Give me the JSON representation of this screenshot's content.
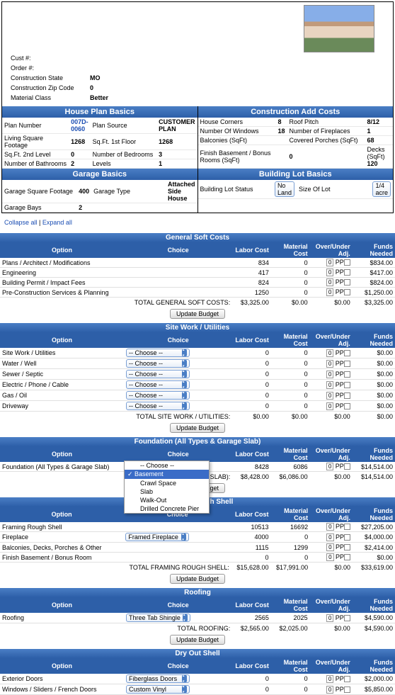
{
  "topInfo": {
    "custNum": {
      "label": "Cust #:",
      "value": ""
    },
    "orderNum": {
      "label": "Order #:",
      "value": ""
    },
    "state": {
      "label": "Construction State",
      "value": "MO"
    },
    "zip": {
      "label": "Construction Zip Code",
      "value": "0"
    },
    "material": {
      "label": "Material Class",
      "value": "Better"
    }
  },
  "housePlan": {
    "title": "House Plan Basics",
    "planNum": {
      "label": "Plan Number",
      "value": "007D-0060"
    },
    "planSrc": {
      "label": "Plan Source",
      "value": "CUSTOMER PLAN"
    },
    "livSqFt": {
      "label": "Living Square Footage",
      "value": "1268"
    },
    "sqFt1": {
      "label": "Sq.Ft. 1st Floor",
      "value": "1268"
    },
    "sqFt2": {
      "label": "Sq.Ft. 2nd Level",
      "value": "0"
    },
    "bedrooms": {
      "label": "Number of Bedrooms",
      "value": "3"
    },
    "bathrooms": {
      "label": "Number of Bathrooms",
      "value": "2"
    },
    "levels": {
      "label": "Levels",
      "value": "1"
    }
  },
  "addCosts": {
    "title": "Construction Add Costs",
    "corners": {
      "label": "House Corners",
      "value": "8"
    },
    "roofPitch": {
      "label": "Roof Pitch",
      "value": "8/12"
    },
    "windows": {
      "label": "Number Of Windows",
      "value": "18"
    },
    "fireplaces": {
      "label": "Number of Fireplaces",
      "value": "1"
    },
    "balconies": {
      "label": "Balconies (SqFt)",
      "value": ""
    },
    "porches": {
      "label": "Covered Porches (SqFt)",
      "value": "68"
    },
    "finishBsmt": {
      "label": "Finish Basement / Bonus Rooms (SqFt)",
      "value": "0"
    },
    "decks": {
      "label": "Decks (SqFt)",
      "value": "120"
    }
  },
  "garage": {
    "title": "Garage Basics",
    "sqFt": {
      "label": "Garage Square Footage",
      "value": "400"
    },
    "type": {
      "label": "Garage Type",
      "value": "Attached Side House"
    },
    "bays": {
      "label": "Garage Bays",
      "value": "2"
    }
  },
  "lot": {
    "title": "Building Lot Basics",
    "status": {
      "label": "Building Lot Status",
      "value": "No Land"
    },
    "size": {
      "label": "Size Of Lot",
      "value": "1/4 acre"
    }
  },
  "links": {
    "collapse": "Collapse all",
    "expand": "Expand all"
  },
  "hdrs": {
    "option": "Option",
    "choice": "Choice",
    "labor": "Labor Cost",
    "material": "Material Cost",
    "adj": "Over/Under Adj.",
    "funds": "Funds Needed"
  },
  "updateBtn": "Update Budget",
  "sections": {
    "soft": {
      "title": "General Soft Costs",
      "rows": [
        {
          "opt": "Plans / Architect / Modifications",
          "labor": "834",
          "mat": "0",
          "adj": "0",
          "funds": "$834.00"
        },
        {
          "opt": "Engineering",
          "labor": "417",
          "mat": "0",
          "adj": "0",
          "funds": "$417.00"
        },
        {
          "opt": "Building Permit / Impact Fees",
          "labor": "824",
          "mat": "0",
          "adj": "0",
          "funds": "$824.00"
        },
        {
          "opt": "Pre-Construction Services & Planning",
          "labor": "1250",
          "mat": "0",
          "adj": "0",
          "funds": "$1,250.00"
        }
      ],
      "totalLbl": "TOTAL GENERAL SOFT COSTS:",
      "totLabor": "$3,325.00",
      "totMat": "$0.00",
      "totAdj": "$0.00",
      "totFunds": "$3,325.00"
    },
    "site": {
      "title": "Site Work / Utilities",
      "rows": [
        {
          "opt": "Site Work / Utilities",
          "cho": "-- Choose --",
          "labor": "0",
          "mat": "0",
          "adj": "0",
          "funds": "$0.00"
        },
        {
          "opt": "Water / Well",
          "cho": "-- Choose --",
          "labor": "0",
          "mat": "0",
          "adj": "0",
          "funds": "$0.00"
        },
        {
          "opt": "Sewer / Septic",
          "cho": "-- Choose --",
          "labor": "0",
          "mat": "0",
          "adj": "0",
          "funds": "$0.00"
        },
        {
          "opt": "Electric / Phone / Cable",
          "cho": "-- Choose --",
          "labor": "0",
          "mat": "0",
          "adj": "0",
          "funds": "$0.00"
        },
        {
          "opt": "Gas / Oil",
          "cho": "-- Choose --",
          "labor": "0",
          "mat": "0",
          "adj": "0",
          "funds": "$0.00"
        },
        {
          "opt": "Driveway",
          "cho": "-- Choose --",
          "labor": "0",
          "mat": "0",
          "adj": "0",
          "funds": "$0.00"
        }
      ],
      "totalLbl": "TOTAL SITE WORK / UTILITIES:",
      "totLabor": "$0.00",
      "totMat": "$0.00",
      "totAdj": "$0.00",
      "totFunds": "$0.00"
    },
    "foundation": {
      "title": "Foundation (All Types & Garage Slab)",
      "rows": [
        {
          "opt": "Foundation (All Types & Garage Slab)",
          "labor": "8428",
          "mat": "6086",
          "adj": "0",
          "funds": "$14,514.00"
        }
      ],
      "totalLbl": "S & GARAGE SLAB):",
      "totLabor": "$8,428.00",
      "totMat": "$6,086.00",
      "totAdj": "$0.00",
      "totFunds": "$14,514.00",
      "dropdown": {
        "items": [
          "-- Choose --",
          "Basement",
          "Crawl Space",
          "Slab",
          "Walk-Out",
          "Drilled Concrete Pier"
        ],
        "selected": "Basement"
      }
    },
    "framing": {
      "title": "Framing Rough Shell",
      "rows": [
        {
          "opt": "Framing Rough Shell",
          "labor": "10513",
          "mat": "16692",
          "adj": "0",
          "funds": "$27,205.00"
        },
        {
          "opt": "Fireplace",
          "cho": "Framed Fireplace",
          "labor": "4000",
          "mat": "0",
          "adj": "0",
          "funds": "$4,000.00"
        },
        {
          "opt": "Balconies, Decks, Porches & Other",
          "labor": "1115",
          "mat": "1299",
          "adj": "0",
          "funds": "$2,414.00"
        },
        {
          "opt": "Finish Basement / Bonus Room",
          "labor": "0",
          "mat": "0",
          "adj": "0",
          "funds": "$0.00"
        }
      ],
      "totalLbl": "TOTAL FRAMING ROUGH SHELL:",
      "totLabor": "$15,628.00",
      "totMat": "$17,991.00",
      "totAdj": "$0.00",
      "totFunds": "$33,619.00"
    },
    "roofing": {
      "title": "Roofing",
      "rows": [
        {
          "opt": "Roofing",
          "cho": "Three Tab Shingle",
          "labor": "2565",
          "mat": "2025",
          "adj": "0",
          "funds": "$4,590.00"
        }
      ],
      "totalLbl": "TOTAL ROOFING:",
      "totLabor": "$2,565.00",
      "totMat": "$2,025.00",
      "totAdj": "$0.00",
      "totFunds": "$4,590.00"
    },
    "dryout": {
      "title": "Dry Out Shell",
      "rows": [
        {
          "opt": "Exterior Doors",
          "cho": "Fiberglass Doors",
          "labor": "0",
          "mat": "0",
          "adj": "0",
          "funds": "$2,000.00"
        },
        {
          "opt": "Windows / Sliders / French Doors",
          "cho": "Custom Vinyl",
          "labor": "0",
          "mat": "0",
          "adj": "0",
          "funds": "$5,850.00"
        }
      ]
    }
  },
  "ppLabel": "PP"
}
